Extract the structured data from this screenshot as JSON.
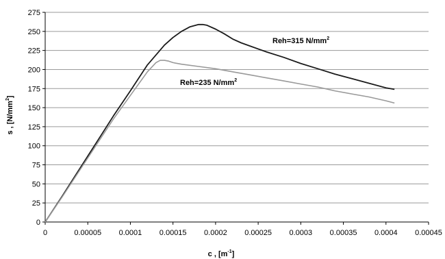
{
  "chart_data": {
    "type": "line",
    "title": "",
    "xlabel": "c , [m",
    "xlabel_sup": "-1",
    "xlabel_end": "]",
    "ylabel": "s , [N/mm",
    "ylabel_sup": "2",
    "ylabel_end": "]",
    "xlim": [
      0,
      0.00045
    ],
    "ylim": [
      0,
      275
    ],
    "x_ticks": [
      "0",
      "0.00005",
      "0.0001",
      "0.00015",
      "0.0002",
      "0.00025",
      "0.0003",
      "0.00035",
      "0.0004",
      "0.00045"
    ],
    "y_ticks": [
      "0",
      "25",
      "50",
      "75",
      "100",
      "125",
      "150",
      "175",
      "200",
      "225",
      "250",
      "275"
    ],
    "grid": "horizontal",
    "legend": "inline labels",
    "series": [
      {
        "name": "Reh=315 N/mm",
        "name_sup": "2",
        "color": "#1a1a1a",
        "x": [
          0,
          2e-05,
          4e-05,
          6e-05,
          8e-05,
          0.0001,
          0.00012,
          0.00014,
          0.00015,
          0.00016,
          0.00017,
          0.00018,
          0.000185,
          0.00019,
          0.0002,
          0.00021,
          0.00022,
          0.00023,
          0.00024,
          0.00026,
          0.00028,
          0.0003,
          0.00032,
          0.00034,
          0.00036,
          0.00038,
          0.0004,
          0.00041
        ],
        "y": [
          0,
          34,
          69,
          104,
          139,
          172,
          206,
          232,
          242,
          250,
          256,
          259,
          259,
          258,
          253,
          247,
          240,
          235,
          231,
          223,
          216,
          208,
          201,
          194,
          188,
          182,
          176,
          174
        ]
      },
      {
        "name": "Reh=235 N/mm",
        "name_sup": "2",
        "color": "#999999",
        "x": [
          0,
          2e-05,
          4e-05,
          6e-05,
          8e-05,
          0.0001,
          0.00012,
          0.00013,
          0.000135,
          0.00014,
          0.000145,
          0.00015,
          0.00016,
          0.00018,
          0.0002,
          0.00022,
          0.00024,
          0.00026,
          0.00028,
          0.0003,
          0.00032,
          0.00034,
          0.00036,
          0.00038,
          0.0004,
          0.00041
        ],
        "y": [
          0,
          33,
          67,
          101,
          135,
          166,
          197,
          209,
          212,
          212,
          211,
          209,
          207,
          204,
          201,
          197,
          193,
          189,
          185,
          181,
          177,
          172,
          168,
          164,
          159,
          156
        ]
      }
    ]
  }
}
